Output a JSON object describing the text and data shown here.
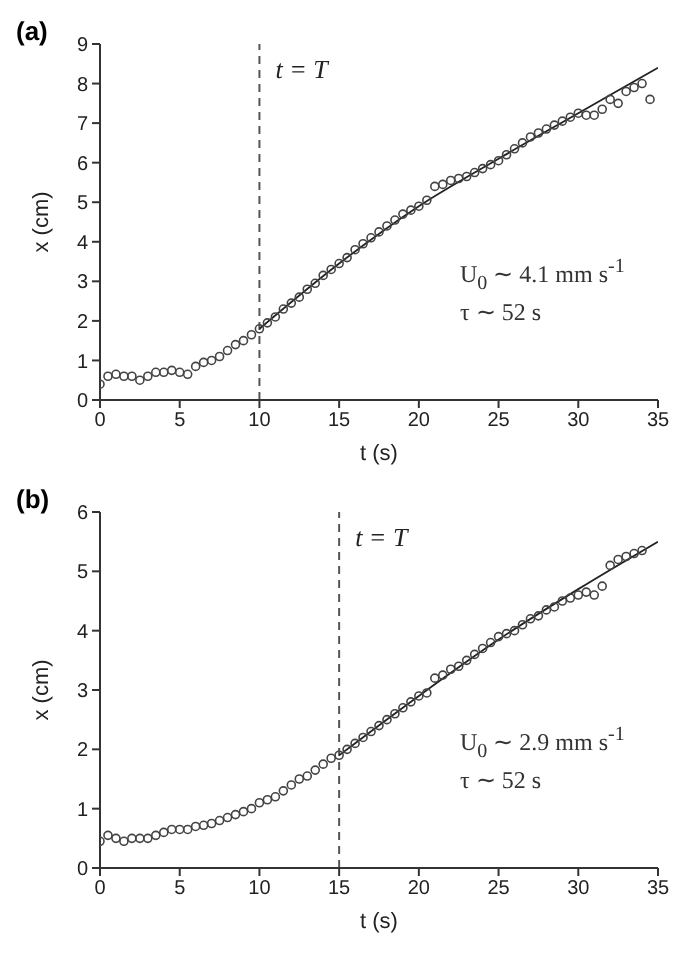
{
  "chart_data": [
    {
      "type": "scatter",
      "title": "(a)",
      "xlabel": "t (s)",
      "ylabel": "x (cm)",
      "xlim": [
        0,
        35
      ],
      "xticks": [
        0,
        5,
        10,
        15,
        20,
        25,
        30,
        35
      ],
      "ylim": [
        0,
        9
      ],
      "yticks": [
        0,
        1,
        2,
        3,
        4,
        5,
        6,
        7,
        8,
        9
      ],
      "ref_lines": [
        {
          "axis": "x",
          "value": 10,
          "label": "t = T",
          "line_style": "dashed",
          "color": "#555555"
        }
      ],
      "annotations": [
        "U$_{0}$ ∼ 4.1 mm s$^{-1}$",
        "τ ∼ 52 s"
      ],
      "series": [
        {
          "type": "scatter",
          "marker": "circle",
          "color": "#444444",
          "x": [
            0,
            0.5,
            1,
            1.5,
            2,
            2.5,
            3,
            3.5,
            4,
            4.5,
            5,
            5.5,
            6,
            6.5,
            7,
            7.5,
            8,
            8.5,
            9,
            9.5,
            10,
            10.5,
            11,
            11.5,
            12,
            12.5,
            13,
            13.5,
            14,
            14.5,
            15,
            15.5,
            16,
            16.5,
            17,
            17.5,
            18,
            18.5,
            19,
            19.5,
            20,
            20.5,
            21,
            21.5,
            22,
            22.5,
            23,
            23.5,
            24,
            24.5,
            25,
            25.5,
            26,
            26.5,
            27,
            27.5,
            28,
            28.5,
            29,
            29.5,
            30,
            30.5,
            31,
            31.5,
            32,
            32.5,
            33,
            33.5,
            34,
            34.5
          ],
          "values": [
            0.4,
            0.6,
            0.65,
            0.6,
            0.6,
            0.5,
            0.6,
            0.7,
            0.7,
            0.75,
            0.7,
            0.65,
            0.85,
            0.95,
            1.0,
            1.1,
            1.25,
            1.4,
            1.5,
            1.65,
            1.8,
            1.95,
            2.1,
            2.3,
            2.45,
            2.6,
            2.8,
            2.95,
            3.15,
            3.3,
            3.45,
            3.6,
            3.8,
            3.95,
            4.1,
            4.25,
            4.4,
            4.55,
            4.7,
            4.8,
            4.9,
            5.05,
            5.4,
            5.45,
            5.55,
            5.6,
            5.65,
            5.75,
            5.85,
            5.95,
            6.05,
            6.2,
            6.35,
            6.5,
            6.65,
            6.75,
            6.85,
            6.95,
            7.05,
            7.15,
            7.25,
            7.2,
            7.2,
            7.35,
            7.6,
            7.5,
            7.8,
            7.9,
            8.0,
            7.6
          ]
        },
        {
          "type": "line",
          "marker": "none",
          "color": "#222222",
          "x": [
            10,
            15,
            20,
            25,
            30,
            35
          ],
          "values": [
            1.8,
            3.45,
            4.9,
            6.1,
            7.25,
            8.4
          ]
        }
      ]
    },
    {
      "type": "scatter",
      "title": "(b)",
      "xlabel": "t (s)",
      "ylabel": "x (cm)",
      "xlim": [
        0,
        35
      ],
      "xticks": [
        0,
        5,
        10,
        15,
        20,
        25,
        30,
        35
      ],
      "ylim": [
        0,
        6
      ],
      "yticks": [
        0,
        1,
        2,
        3,
        4,
        5,
        6
      ],
      "ref_lines": [
        {
          "axis": "x",
          "value": 15,
          "label": "t = T",
          "line_style": "dashed",
          "color": "#555555"
        }
      ],
      "annotations": [
        "U$_{0}$ ∼ 2.9 mm s$^{-1}$",
        "τ ∼ 52 s"
      ],
      "series": [
        {
          "type": "scatter",
          "marker": "circle",
          "color": "#444444",
          "x": [
            0,
            0.5,
            1,
            1.5,
            2,
            2.5,
            3,
            3.5,
            4,
            4.5,
            5,
            5.5,
            6,
            6.5,
            7,
            7.5,
            8,
            8.5,
            9,
            9.5,
            10,
            10.5,
            11,
            11.5,
            12,
            12.5,
            13,
            13.5,
            14,
            14.5,
            15,
            15.5,
            16,
            16.5,
            17,
            17.5,
            18,
            18.5,
            19,
            19.5,
            20,
            20.5,
            21,
            21.5,
            22,
            22.5,
            23,
            23.5,
            24,
            24.5,
            25,
            25.5,
            26,
            26.5,
            27,
            27.5,
            28,
            28.5,
            29,
            29.5,
            30,
            30.5,
            31,
            31.5,
            32,
            32.5,
            33,
            33.5,
            34
          ],
          "values": [
            0.45,
            0.55,
            0.5,
            0.45,
            0.5,
            0.5,
            0.5,
            0.55,
            0.6,
            0.65,
            0.65,
            0.65,
            0.7,
            0.72,
            0.75,
            0.8,
            0.85,
            0.9,
            0.95,
            1.0,
            1.1,
            1.15,
            1.2,
            1.3,
            1.4,
            1.5,
            1.55,
            1.65,
            1.75,
            1.85,
            1.9,
            2.0,
            2.1,
            2.2,
            2.3,
            2.4,
            2.5,
            2.6,
            2.7,
            2.8,
            2.9,
            2.95,
            3.2,
            3.25,
            3.35,
            3.4,
            3.5,
            3.6,
            3.7,
            3.8,
            3.9,
            3.95,
            4.0,
            4.1,
            4.2,
            4.25,
            4.35,
            4.4,
            4.5,
            4.55,
            4.6,
            4.65,
            4.6,
            4.75,
            5.1,
            5.2,
            5.25,
            5.3,
            5.35
          ]
        },
        {
          "type": "line",
          "marker": "none",
          "color": "#222222",
          "x": [
            15,
            20,
            25,
            30,
            35
          ],
          "values": [
            1.9,
            2.9,
            3.85,
            4.7,
            5.5
          ]
        }
      ]
    }
  ]
}
